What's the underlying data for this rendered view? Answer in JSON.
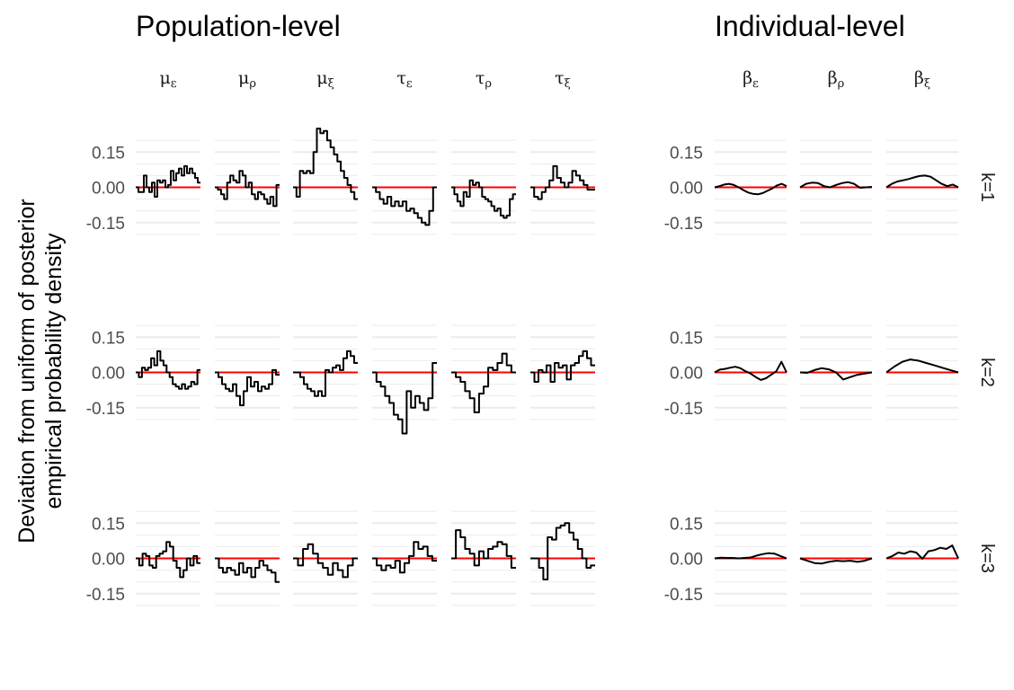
{
  "y_label_lines": [
    "Deviation from uniform of posterior",
    "empirical probability density"
  ],
  "colors": {
    "series": "#000000",
    "reference": "#ff0000",
    "grid": "#ebebeb",
    "text": "#4d4d4d",
    "title": "#000000"
  },
  "chart_data": [
    {
      "type": "line",
      "title": "Population-level",
      "step": true,
      "ylim": [
        -0.3,
        0.3
      ],
      "yticks": [
        -0.15,
        0.0,
        0.15
      ],
      "ytick_labels": [
        "-0.15",
        "0.00",
        "0.15"
      ],
      "grid": true,
      "reference_line": 0,
      "facets": [
        {
          "param": "μ",
          "sub": "ε"
        },
        {
          "param": "μ",
          "sub": "ρ"
        },
        {
          "param": "μ",
          "sub": "ξ"
        },
        {
          "param": "τ",
          "sub": "ε"
        },
        {
          "param": "τ",
          "sub": "ρ"
        },
        {
          "param": "τ",
          "sub": "ξ"
        }
      ],
      "rows": [
        {
          "strip": "k=1",
          "series": [
            {
              "values": [
                0,
                -0.02,
                -0.02,
                0.05,
                0.0,
                -0.02,
                0.02,
                -0.04,
                0.03,
                0.02,
                0.03,
                0.0,
                0.01,
                0.07,
                0.03,
                0.06,
                0.08,
                0.05,
                0.09,
                0.06,
                0.08,
                0.06,
                0.04,
                0.02
              ]
            },
            {
              "values": [
                0,
                -0.01,
                -0.03,
                -0.05,
                0.02,
                0.05,
                0.03,
                0.02,
                0.07,
                0.05,
                0.0,
                0.02,
                -0.03,
                -0.05,
                -0.02,
                -0.03,
                -0.05,
                -0.07,
                -0.04,
                -0.08,
                0.01
              ]
            },
            {
              "values": [
                0,
                -0.04,
                0.07,
                0.06,
                0.07,
                0.06,
                0.15,
                0.25,
                0.23,
                0.24,
                0.2,
                0.17,
                0.14,
                0.11,
                0.07,
                0.04,
                0.01,
                -0.02,
                -0.05
              ]
            },
            {
              "values": [
                0,
                -0.02,
                -0.05,
                -0.07,
                -0.04,
                -0.08,
                -0.06,
                -0.08,
                -0.06,
                -0.1,
                -0.09,
                -0.11,
                -0.13,
                -0.15,
                -0.16,
                -0.1,
                0.0
              ]
            },
            {
              "values": [
                0,
                -0.03,
                -0.06,
                -0.08,
                -0.02,
                -0.04,
                0.03,
                0.01,
                0.02,
                0.0,
                -0.04,
                -0.05,
                -0.06,
                -0.08,
                -0.1,
                -0.09,
                -0.12,
                -0.13,
                -0.12,
                -0.05,
                -0.03
              ]
            },
            {
              "values": [
                0,
                -0.04,
                -0.05,
                -0.02,
                0.0,
                0.03,
                0.09,
                0.04,
                0.02,
                0.0,
                0.02,
                0.07,
                0.05,
                0.03,
                0.01,
                -0.01,
                -0.01
              ]
            }
          ]
        },
        {
          "strip": "k=2",
          "series": [
            {
              "values": [
                0,
                -0.02,
                0.02,
                0.01,
                0.02,
                0.06,
                0.03,
                0.09,
                0.05,
                0.03,
                0.0,
                -0.02,
                -0.05,
                -0.06,
                -0.07,
                -0.05,
                -0.07,
                -0.06,
                -0.04,
                -0.05,
                0.01
              ]
            },
            {
              "values": [
                0,
                -0.02,
                -0.05,
                -0.07,
                -0.08,
                -0.05,
                -0.1,
                -0.14,
                -0.08,
                -0.02,
                -0.06,
                -0.04,
                -0.08,
                -0.06,
                -0.07,
                -0.05,
                0.01,
                -0.01
              ]
            },
            {
              "values": [
                0,
                0.0,
                -0.02,
                -0.05,
                -0.07,
                -0.08,
                -0.1,
                -0.08,
                -0.1,
                0.01,
                0.0,
                0.02,
                0.03,
                0.01,
                0.06,
                0.09,
                0.07,
                0.04
              ]
            },
            {
              "values": [
                0,
                -0.04,
                -0.06,
                -0.1,
                -0.13,
                -0.18,
                -0.2,
                -0.26,
                -0.08,
                -0.15,
                -0.1,
                -0.13,
                -0.16,
                -0.11,
                0.04
              ]
            },
            {
              "values": [
                0,
                -0.02,
                -0.04,
                -0.08,
                -0.11,
                -0.17,
                -0.09,
                -0.06,
                0.02,
                0.01,
                0.04,
                0.08,
                0.03,
                0.0
              ]
            },
            {
              "values": [
                0,
                -0.04,
                0.01,
                0.0,
                0.03,
                -0.04,
                0.04,
                0.02,
                0.03,
                -0.03,
                0.03,
                0.04,
                0.07,
                0.09,
                0.06,
                0.03
              ]
            }
          ]
        },
        {
          "strip": "k=3",
          "series": [
            {
              "values": [
                0,
                -0.03,
                0.02,
                0.01,
                -0.03,
                -0.04,
                0.01,
                0.02,
                0.03,
                0.07,
                0.05,
                -0.01,
                -0.04,
                -0.08,
                -0.05,
                0.0,
                -0.03,
                0.01,
                -0.02
              ]
            },
            {
              "values": [
                0,
                -0.04,
                -0.06,
                -0.04,
                -0.05,
                -0.07,
                -0.02,
                -0.06,
                -0.04,
                -0.08,
                -0.04,
                -0.01,
                -0.03,
                -0.05,
                -0.06,
                -0.1
              ]
            },
            {
              "values": [
                0,
                -0.03,
                0.04,
                0.06,
                0.02,
                -0.02,
                -0.04,
                -0.07,
                -0.02,
                -0.05,
                -0.08,
                -0.03,
                0.0
              ]
            },
            {
              "values": [
                0,
                -0.03,
                -0.05,
                -0.03,
                -0.04,
                -0.01,
                -0.06,
                -0.02,
                0.01,
                0.07,
                0.04,
                0.05,
                0.01,
                -0.01
              ]
            },
            {
              "values": [
                0,
                0.12,
                0.09,
                0.04,
                0.02,
                -0.03,
                0.03,
                0.0,
                0.04,
                0.05,
                0.07,
                0.06,
                0.01,
                -0.04
              ]
            },
            {
              "values": [
                0,
                0.0,
                -0.04,
                -0.09,
                0.09,
                0.08,
                0.13,
                0.14,
                0.15,
                0.11,
                0.08,
                0.04,
                0.0,
                -0.04,
                -0.03
              ]
            }
          ]
        }
      ]
    },
    {
      "type": "line",
      "title": "Individual-level",
      "ylim": [
        -0.3,
        0.3
      ],
      "yticks": [
        -0.15,
        0.0,
        0.15
      ],
      "ytick_labels": [
        "-0.15",
        "0.00",
        "0.15"
      ],
      "grid": true,
      "reference_line": 0,
      "facets": [
        {
          "param": "β",
          "sub": "ε"
        },
        {
          "param": "β",
          "sub": "ρ"
        },
        {
          "param": "β",
          "sub": "ξ"
        }
      ],
      "rows": [
        {
          "strip": "k=1",
          "series": [
            {
              "values": [
                0,
                0.005,
                0.012,
                0.015,
                0.01,
                0.0,
                -0.012,
                -0.022,
                -0.028,
                -0.03,
                -0.025,
                -0.015,
                -0.005,
                0.008,
                0.015,
                0.005
              ]
            },
            {
              "values": [
                0,
                0.015,
                0.02,
                0.018,
                0.005,
                0.0,
                0.01,
                0.018,
                0.022,
                0.015,
                -0.002,
                0.0,
                0.002
              ]
            },
            {
              "values": [
                0,
                0.015,
                0.025,
                0.03,
                0.035,
                0.042,
                0.048,
                0.05,
                0.045,
                0.03,
                0.015,
                0.005,
                0.012,
                0.0
              ]
            }
          ]
        },
        {
          "strip": "k=2",
          "series": [
            {
              "values": [
                0,
                0.012,
                0.015,
                0.02,
                0.024,
                0.018,
                0.005,
                -0.005,
                -0.02,
                -0.032,
                -0.025,
                -0.01,
                0.005,
                0.045,
                0.0
              ]
            },
            {
              "values": [
                0,
                -0.002,
                0.01,
                0.018,
                0.013,
                0.0,
                -0.03,
                -0.02,
                -0.01,
                -0.005,
                0.0
              ]
            },
            {
              "values": [
                0,
                0.025,
                0.045,
                0.055,
                0.05,
                0.04,
                0.03,
                0.02,
                0.01,
                0.0
              ]
            }
          ]
        },
        {
          "strip": "k=3",
          "series": [
            {
              "values": [
                0,
                0.003,
                0.002,
                0.002,
                0.0,
                0.002,
                0.004,
                0.012,
                0.018,
                0.022,
                0.02,
                0.01,
                0.0
              ]
            },
            {
              "values": [
                0,
                -0.01,
                -0.02,
                -0.022,
                -0.015,
                -0.01,
                -0.012,
                -0.01,
                -0.015,
                -0.01,
                0.0
              ]
            },
            {
              "values": [
                0,
                0.01,
                0.025,
                0.02,
                0.03,
                0.025,
                -0.002,
                0.03,
                0.035,
                0.045,
                0.04,
                0.055,
                0.0
              ]
            }
          ]
        }
      ]
    }
  ]
}
